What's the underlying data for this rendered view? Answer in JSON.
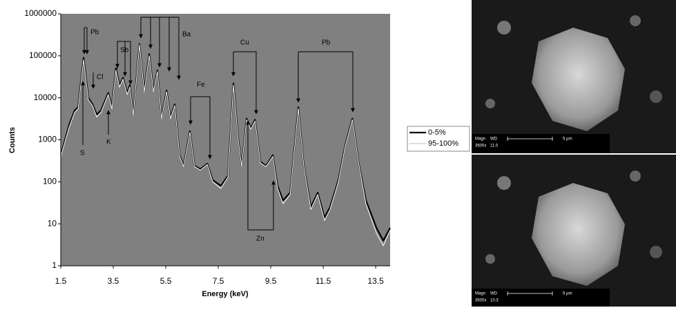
{
  "chart_data": {
    "type": "line",
    "xlabel": "Energy (keV)",
    "ylabel": "Counts",
    "x": [
      1.5,
      1.82,
      2.03,
      2.16,
      2.37,
      2.55,
      2.71,
      2.87,
      3.03,
      3.31,
      3.45,
      3.6,
      3.74,
      3.87,
      4.03,
      4.13,
      4.26,
      4.5,
      4.68,
      4.87,
      5.03,
      5.18,
      5.34,
      5.53,
      5.68,
      5.84,
      6.03,
      6.18,
      6.42,
      6.6,
      6.82,
      7.08,
      7.29,
      7.6,
      7.87,
      8.08,
      8.26,
      8.39,
      8.58,
      8.74,
      8.9,
      9.11,
      9.32,
      9.58,
      9.76,
      9.97,
      10.24,
      10.55,
      10.76,
      11.03,
      11.29,
      11.55,
      11.76,
      12.08,
      12.34,
      12.61,
      12.87,
      13.13,
      13.53,
      13.79,
      14.05
    ],
    "series": [
      {
        "name": "0-5%",
        "color": "#000000",
        "values": [
          430,
          2300,
          5000,
          6000,
          90000,
          10000,
          7000,
          4000,
          5000,
          13000,
          6000,
          50000,
          20000,
          30000,
          13000,
          20000,
          4000,
          190000,
          15000,
          110000,
          15000,
          45000,
          3400,
          15000,
          3400,
          7000,
          430,
          240,
          1600,
          240,
          200,
          270,
          110,
          80,
          140,
          22000,
          1100,
          240,
          3200,
          1900,
          3000,
          300,
          240,
          430,
          80,
          36,
          55,
          6000,
          240,
          25,
          55,
          14,
          25,
          110,
          750,
          3200,
          240,
          36,
          8,
          4,
          8
        ]
      },
      {
        "name": "95-100%",
        "color": "#ffffff",
        "values": [
          400,
          2000,
          4500,
          5500,
          80000,
          9000,
          6500,
          3500,
          4500,
          12000,
          5500,
          45000,
          18000,
          28000,
          12000,
          18000,
          3800,
          180000,
          14000,
          100000,
          14000,
          42000,
          3200,
          14000,
          3200,
          6500,
          400,
          230,
          1500,
          230,
          190,
          260,
          100,
          70,
          130,
          20000,
          1000,
          230,
          3000,
          1800,
          2800,
          280,
          230,
          400,
          70,
          30,
          50,
          5500,
          230,
          22,
          50,
          12,
          22,
          100,
          700,
          3000,
          230,
          30,
          6,
          3,
          7
        ]
      }
    ],
    "xlim": [
      1.5,
      14.05
    ],
    "xticks": [
      1.5,
      3.5,
      5.5,
      7.5,
      9.5,
      11.5,
      13.5
    ],
    "ylim": [
      1,
      1000000
    ],
    "yticks": [
      1,
      10,
      100,
      1000,
      10000,
      100000,
      1000000
    ],
    "log_y": true,
    "grid": false,
    "legend": "right",
    "annotations": [
      "Pb",
      "Cl",
      "Sb",
      "Ba",
      "S",
      "K",
      "Fe",
      "Cu",
      "Zn",
      "Pb"
    ]
  },
  "images": [
    {
      "magn": "Magn",
      "wd": "WD",
      "scale": "5 µm",
      "mag": "3500x",
      "wd_value": "11.0"
    },
    {
      "magn": "Magn",
      "wd": "WD",
      "scale": "5 µm",
      "mag": "3500x",
      "wd_value": "10.3"
    }
  ]
}
